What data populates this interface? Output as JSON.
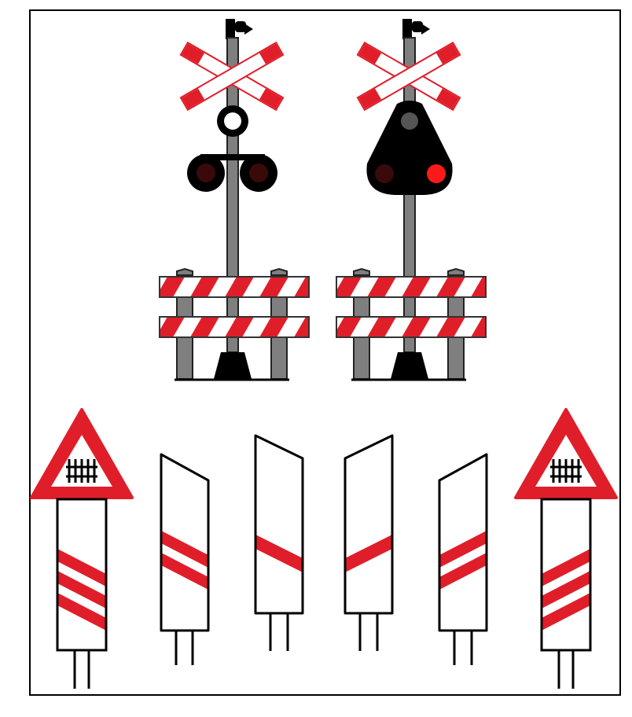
{
  "colors": {
    "frame": "#000000",
    "background": "#ffffff",
    "red": "#e01e2a",
    "white": "#ffffff",
    "gray": "#7f7f7f",
    "black": "#000000",
    "lamp_off": "#3a0a0a",
    "lamp_on": "#ff1a1a",
    "lamp_gray": "#555555"
  },
  "signals": [
    {
      "id": "left",
      "lamp_head": "round-pair",
      "top_lamp": "white-ring",
      "lamps": [
        "off",
        "off"
      ]
    },
    {
      "id": "right",
      "lamp_head": "triangle",
      "top_lamp": "gray",
      "lamps": [
        "off",
        "on"
      ]
    }
  ],
  "beacons": [
    {
      "id": "beacon-1",
      "type": "warning-post",
      "stripes": 3,
      "sign": "triangle-rail-icon"
    },
    {
      "id": "beacon-2",
      "type": "slanted-post",
      "stripes": 2
    },
    {
      "id": "beacon-3",
      "type": "slanted-post",
      "stripes": 1
    },
    {
      "id": "beacon-4",
      "type": "slanted-post",
      "stripes": 1
    },
    {
      "id": "beacon-5",
      "type": "slanted-post",
      "stripes": 2
    },
    {
      "id": "beacon-6",
      "type": "warning-post",
      "stripes": 3,
      "sign": "triangle-rail-icon"
    }
  ]
}
